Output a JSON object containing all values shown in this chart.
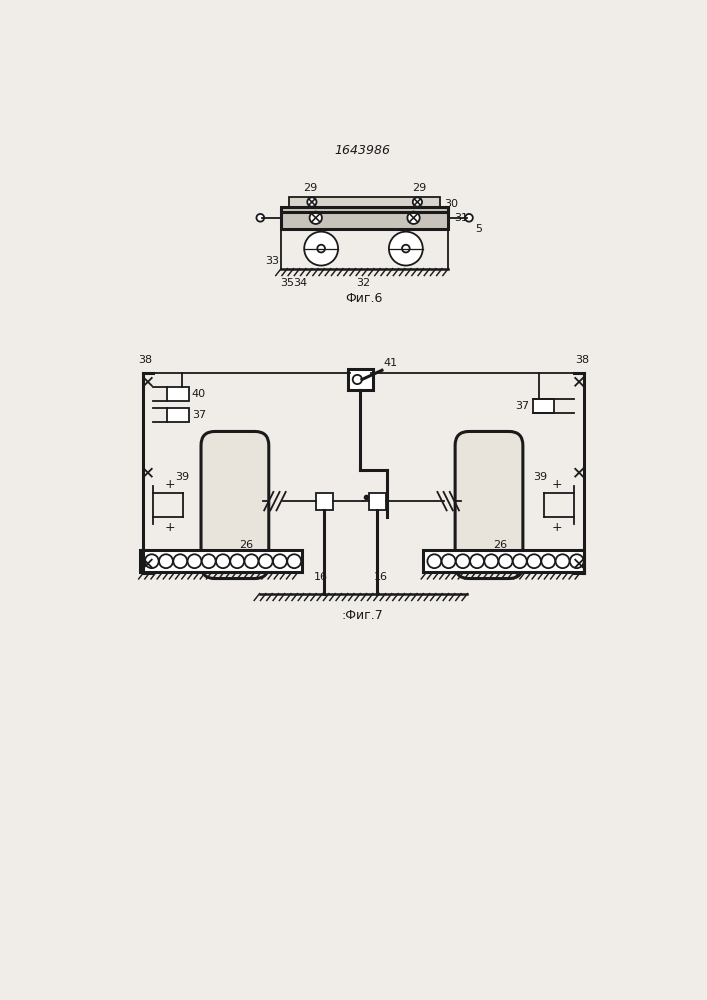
{
  "bg_color": "#f0ede8",
  "line_color": "#1a1a1a",
  "title_text": "1643986",
  "fig6_caption": "Фиг.6",
  "fig7_caption": ":Фиг.7",
  "lw": 1.3,
  "lw2": 2.2
}
